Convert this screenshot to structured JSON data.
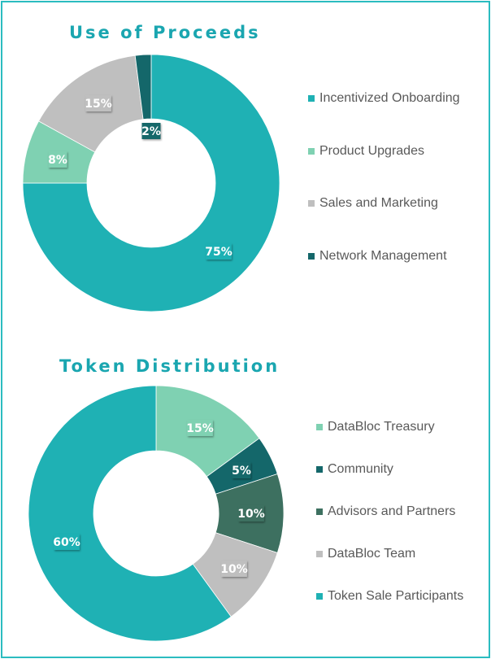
{
  "charts": [
    {
      "title": "Use of Proceeds",
      "chart_data": {
        "type": "pie",
        "title": "Use of Proceeds",
        "style": "donut",
        "categories": [
          "Incentivized Onboarding",
          "Product Upgrades",
          "Sales and Marketing",
          "Network Management"
        ],
        "values": [
          75,
          8,
          15,
          2
        ],
        "labels": [
          "75%",
          "8%",
          "15%",
          "2%"
        ],
        "colors": [
          "#1fb1b4",
          "#7fd1b2",
          "#bfbfbf",
          "#14676a"
        ]
      }
    },
    {
      "title": "Token Distribution",
      "chart_data": {
        "type": "pie",
        "title": "Token Distribution",
        "style": "donut",
        "categories": [
          "DataBloc Treasury",
          "Community",
          "Advisors and Partners",
          "DataBloc Team",
          "Token Sale Participants"
        ],
        "values": [
          15,
          5,
          10,
          10,
          60
        ],
        "labels": [
          "15%",
          "5%",
          "10%",
          "10%",
          "60%"
        ],
        "colors": [
          "#7fd1b2",
          "#14676a",
          "#3d7060",
          "#bfbfbf",
          "#1fb1b4"
        ]
      }
    }
  ]
}
